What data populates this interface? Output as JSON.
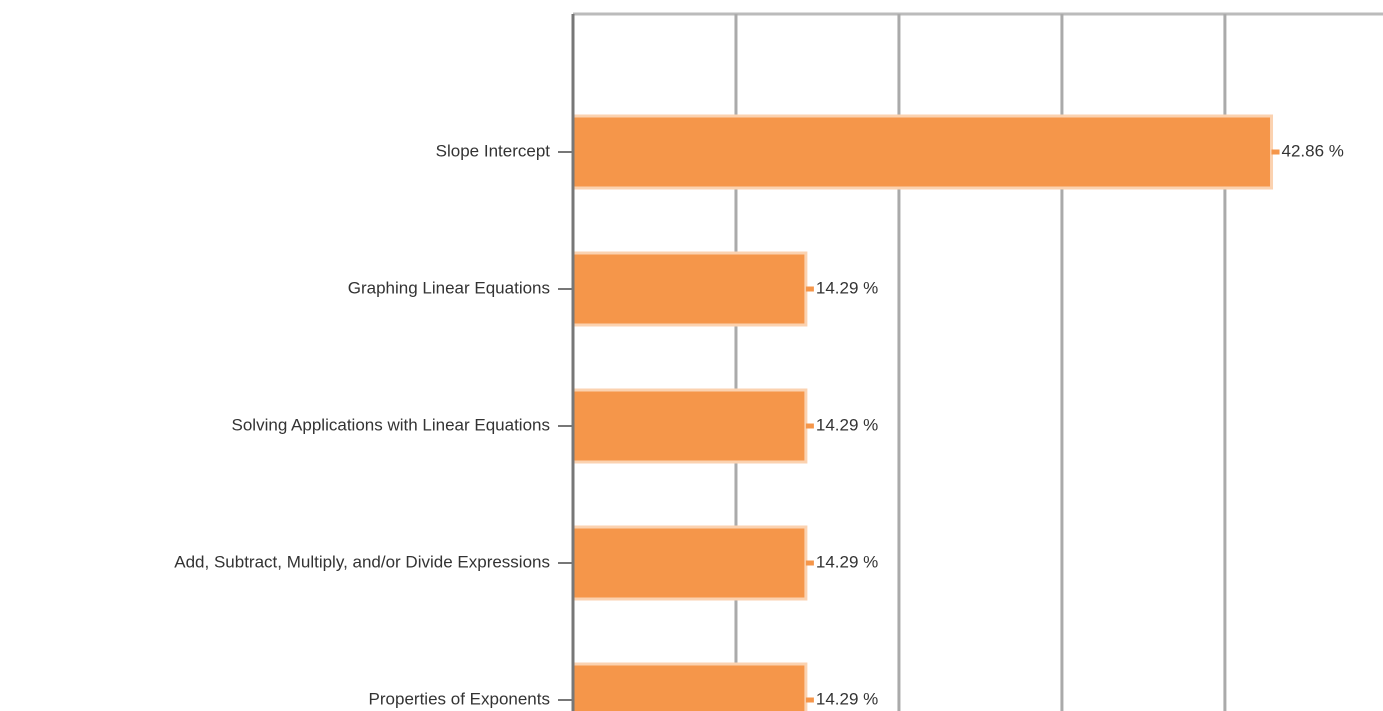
{
  "chart_data": {
    "type": "bar",
    "orientation": "horizontal",
    "categories": [
      "Slope Intercept",
      "Graphing Linear Equations",
      "Solving Applications with Linear Equations",
      "Add, Subtract, Multiply, and/or Divide Expressions",
      "Properties of Exponents"
    ],
    "values": [
      42.86,
      14.29,
      14.29,
      14.29,
      14.29
    ],
    "value_labels": [
      "42.86 %",
      "14.29 %",
      "14.29 %",
      "14.29 %",
      "14.29 %"
    ],
    "color": "#f5964a",
    "xlim": [
      0,
      49.7
    ],
    "xticks": [
      0,
      10,
      20,
      30,
      40
    ],
    "grid": true
  }
}
